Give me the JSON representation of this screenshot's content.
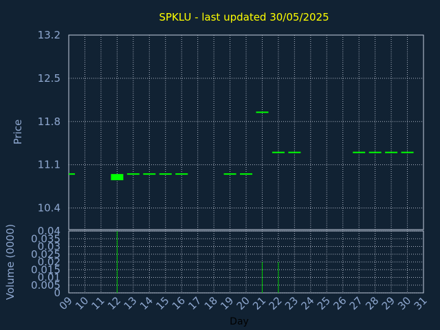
{
  "chart_data": [
    {
      "type": "candlestick",
      "panel": "price",
      "title": "SPKLU - last updated 30/05/2025",
      "ylabel": "Price",
      "ylim": [
        10.05,
        13.2
      ],
      "yticks": [
        "13.2",
        "12.5",
        "11.8",
        "11.1",
        "10.4"
      ],
      "grid": true,
      "x": [
        9,
        12,
        13,
        14,
        15,
        16,
        19,
        20,
        21,
        22,
        23,
        27,
        28,
        29,
        30
      ],
      "open": [
        10.95,
        10.9,
        10.95,
        10.95,
        10.95,
        10.95,
        10.95,
        10.95,
        11.95,
        11.3,
        11.3,
        11.3,
        11.3,
        11.3,
        11.3
      ],
      "close": [
        10.95,
        10.9,
        10.95,
        10.95,
        10.95,
        10.95,
        10.95,
        10.95,
        11.95,
        11.3,
        11.3,
        11.3,
        11.3,
        11.3,
        11.3
      ],
      "bodyHigh": [
        10.95,
        10.95,
        10.95,
        10.95,
        10.95,
        10.95,
        10.95,
        10.95,
        11.95,
        11.3,
        11.3,
        11.3,
        11.3,
        11.3,
        11.3
      ],
      "bodyLow": [
        10.95,
        10.85,
        10.95,
        10.95,
        10.95,
        10.95,
        10.95,
        10.95,
        11.95,
        11.3,
        11.3,
        11.3,
        11.3,
        11.3,
        11.3
      ]
    },
    {
      "type": "bar",
      "panel": "volume",
      "ylabel": "Volume (0000)",
      "ylim": [
        0,
        0.04
      ],
      "yticks": [
        "0.04",
        "0.035",
        "0.03",
        "0.025",
        "0.02",
        "0.015",
        "0.01",
        "0.005",
        "0"
      ],
      "grid": true,
      "x": [
        12,
        21,
        22
      ],
      "values": [
        0.04,
        0.02,
        0.02
      ]
    }
  ],
  "xaxis": {
    "label": "Day",
    "ticks": [
      "09",
      "10",
      "11",
      "12",
      "13",
      "14",
      "15",
      "16",
      "17",
      "18",
      "19",
      "20",
      "21",
      "22",
      "23",
      "24",
      "25",
      "26",
      "27",
      "28",
      "29",
      "30",
      "31"
    ]
  },
  "colors": {
    "background": "#112233",
    "title": "#ffff00",
    "axis_text": "#8fa8d0",
    "grid": "#b0b8c8",
    "frame": "#c8d0e0",
    "candle": "#00ff00",
    "volume": "#00cc00"
  }
}
